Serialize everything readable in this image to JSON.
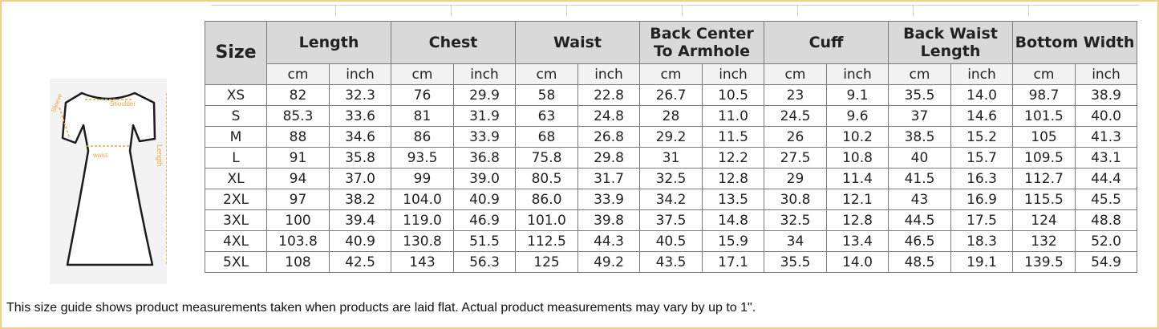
{
  "colors": {
    "frame": "#f5cd8a",
    "header_bg": "#d9d9d9",
    "unit_bg": "#f2f2f2",
    "diagram_accent": "#e2a84a"
  },
  "diagram": {
    "sleeve_label": "Sleeve",
    "shoulder_label": "Shoulder",
    "waist_label": "waist",
    "length_label": "Length"
  },
  "table": {
    "size_header": "Size",
    "groups": [
      "Length",
      "Chest",
      "Waist",
      "Back Center To Armhole",
      "Cuff",
      "Back Waist Length",
      "Bottom Width"
    ],
    "units": [
      "cm",
      "inch"
    ],
    "rows": [
      {
        "size": "XS",
        "values": [
          "82",
          "32.3",
          "76",
          "29.9",
          "58",
          "22.8",
          "26.7",
          "10.5",
          "23",
          "9.1",
          "35.5",
          "14.0",
          "98.7",
          "38.9"
        ]
      },
      {
        "size": "S",
        "values": [
          "85.3",
          "33.6",
          "81",
          "31.9",
          "63",
          "24.8",
          "28",
          "11.0",
          "24.5",
          "9.6",
          "37",
          "14.6",
          "101.5",
          "40.0"
        ]
      },
      {
        "size": "M",
        "values": [
          "88",
          "34.6",
          "86",
          "33.9",
          "68",
          "26.8",
          "29.2",
          "11.5",
          "26",
          "10.2",
          "38.5",
          "15.2",
          "105",
          "41.3"
        ]
      },
      {
        "size": "L",
        "values": [
          "91",
          "35.8",
          "93.5",
          "36.8",
          "75.8",
          "29.8",
          "31",
          "12.2",
          "27.5",
          "10.8",
          "40",
          "15.7",
          "109.5",
          "43.1"
        ]
      },
      {
        "size": "XL",
        "values": [
          "94",
          "37.0",
          "99",
          "39.0",
          "80.5",
          "31.7",
          "32.5",
          "12.8",
          "29",
          "11.4",
          "41.5",
          "16.3",
          "112.7",
          "44.4"
        ]
      },
      {
        "size": "2XL",
        "values": [
          "97",
          "38.2",
          "104.0",
          "40.9",
          "86.0",
          "33.9",
          "34.2",
          "13.5",
          "30.8",
          "12.1",
          "43",
          "16.9",
          "115.5",
          "45.5"
        ]
      },
      {
        "size": "3XL",
        "values": [
          "100",
          "39.4",
          "119.0",
          "46.9",
          "101.0",
          "39.8",
          "37.5",
          "14.8",
          "32.5",
          "12.8",
          "44.5",
          "17.5",
          "124",
          "48.8"
        ]
      },
      {
        "size": "4XL",
        "values": [
          "103.8",
          "40.9",
          "130.8",
          "51.5",
          "112.5",
          "44.3",
          "40.5",
          "15.9",
          "34",
          "13.4",
          "46.5",
          "18.3",
          "132",
          "52.0"
        ]
      },
      {
        "size": "5XL",
        "values": [
          "108",
          "42.5",
          "143",
          "56.3",
          "125",
          "49.2",
          "43.5",
          "17.1",
          "35.5",
          "14.0",
          "48.5",
          "19.1",
          "139.5",
          "54.9"
        ]
      }
    ]
  },
  "footer_note": "This size guide shows product measurements taken when products are laid flat. Actual product measurements may vary by up to 1\"."
}
